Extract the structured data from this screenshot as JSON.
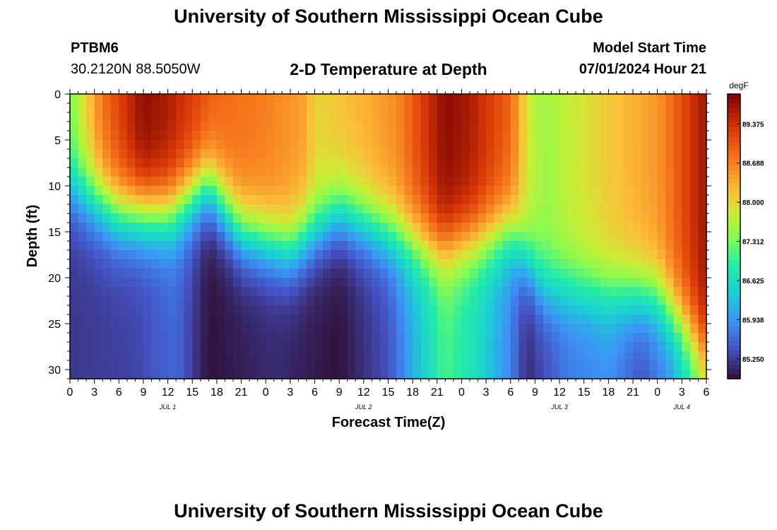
{
  "header": {
    "title": "University of Southern Mississippi Ocean Cube",
    "station_id": "PTBM6",
    "coordinates": "30.2120N  88.5050W",
    "chart_title": "2-D Temperature at Depth",
    "model_start_label": "Model Start Time",
    "model_start_value": "07/01/2024 Hour 21"
  },
  "footer": {
    "title": "University of Southern Mississippi Ocean Cube"
  },
  "chart_data": {
    "type": "heatmap",
    "title": "2-D Temperature at Depth",
    "xlabel": "Forecast Time(Z)",
    "ylabel": "Depth (ft)",
    "x_range_hours": [
      0,
      78
    ],
    "y_range_ft": [
      0,
      31
    ],
    "y_inverted": true,
    "x_tick_labels": [
      "0",
      "3",
      "6",
      "9",
      "12",
      "15",
      "18",
      "21",
      "0",
      "3",
      "6",
      "9",
      "12",
      "15",
      "18",
      "21",
      "0",
      "3",
      "6",
      "9",
      "12",
      "15",
      "18",
      "21",
      "0",
      "3",
      "6"
    ],
    "y_ticks": [
      0,
      5,
      10,
      15,
      20,
      25,
      30
    ],
    "day_labels": [
      {
        "text": "JUL 1",
        "hour": 12
      },
      {
        "text": "JUL 2",
        "hour": 36
      },
      {
        "text": "JUL 3",
        "hour": 60
      },
      {
        "text": "JUL 4",
        "hour": 75
      }
    ],
    "colorbar": {
      "unit": "degF",
      "min": 84.9,
      "max": 89.9,
      "tick_labels": [
        "89.375",
        "88.688",
        "88.000",
        "87.312",
        "86.625",
        "85.938",
        "85.250"
      ],
      "tick_values": [
        89.375,
        88.688,
        88.0,
        87.312,
        86.625,
        85.938,
        85.25
      ]
    },
    "surface_temp_degF": [
      {
        "h": 0,
        "v": 87.3
      },
      {
        "h": 4,
        "v": 88.8
      },
      {
        "h": 9,
        "v": 89.8
      },
      {
        "h": 12,
        "v": 89.6
      },
      {
        "h": 18,
        "v": 88.9
      },
      {
        "h": 24,
        "v": 88.7
      },
      {
        "h": 29,
        "v": 88.4
      },
      {
        "h": 30,
        "v": 88.0
      },
      {
        "h": 36,
        "v": 88.3
      },
      {
        "h": 40,
        "v": 88.6
      },
      {
        "h": 46,
        "v": 89.8
      },
      {
        "h": 49,
        "v": 89.6
      },
      {
        "h": 54,
        "v": 88.9
      },
      {
        "h": 56,
        "v": 87.9
      },
      {
        "h": 58,
        "v": 87.5
      },
      {
        "h": 66,
        "v": 88.1
      },
      {
        "h": 72,
        "v": 88.5
      },
      {
        "h": 78,
        "v": 89.7
      }
    ],
    "mixed_layer_depth_ft": [
      {
        "h": 0,
        "v": 10
      },
      {
        "h": 6,
        "v": 13
      },
      {
        "h": 12,
        "v": 13
      },
      {
        "h": 17,
        "v": 10
      },
      {
        "h": 21,
        "v": 15
      },
      {
        "h": 27,
        "v": 17
      },
      {
        "h": 33,
        "v": 13
      },
      {
        "h": 39,
        "v": 15
      },
      {
        "h": 45,
        "v": 17
      },
      {
        "h": 50,
        "v": 16
      },
      {
        "h": 54,
        "v": 15
      },
      {
        "h": 56,
        "v": 18
      },
      {
        "h": 58,
        "v": 21
      },
      {
        "h": 72,
        "v": 22
      },
      {
        "h": 76,
        "v": 26
      },
      {
        "h": 78,
        "v": 28
      }
    ],
    "bottom_temp_degF": [
      {
        "h": 0,
        "v": 85.2
      },
      {
        "h": 8,
        "v": 85.3
      },
      {
        "h": 13,
        "v": 85.6
      },
      {
        "h": 17,
        "v": 84.9
      },
      {
        "h": 25,
        "v": 85.1
      },
      {
        "h": 33,
        "v": 84.9
      },
      {
        "h": 39,
        "v": 85.4
      },
      {
        "h": 44,
        "v": 86.6
      },
      {
        "h": 46,
        "v": 87.1
      },
      {
        "h": 50,
        "v": 86.6
      },
      {
        "h": 54,
        "v": 85.8
      },
      {
        "h": 56,
        "v": 85.1
      },
      {
        "h": 61,
        "v": 85.7
      },
      {
        "h": 66,
        "v": 85.9
      },
      {
        "h": 70,
        "v": 85.4
      },
      {
        "h": 74,
        "v": 86.0
      },
      {
        "h": 76,
        "v": 86.7
      },
      {
        "h": 78,
        "v": 87.6
      }
    ]
  }
}
